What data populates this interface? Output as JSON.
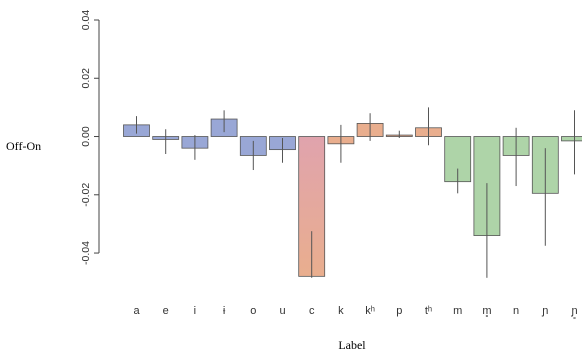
{
  "chart_data": {
    "type": "bar",
    "title": "",
    "xlabel": "Label",
    "ylabel": "Off-On",
    "ylim": [
      -0.052,
      0.04
    ],
    "yticks": [
      0.04,
      0.02,
      0.0,
      -0.02,
      -0.04
    ],
    "ytick_labels": [
      "0.04",
      "0.02",
      "0.00",
      "-0.02",
      "-0.04"
    ],
    "grid": false,
    "categories": [
      "a",
      "e",
      "i",
      "ɨ",
      "o",
      "u",
      "c",
      "k",
      "kʰ",
      "p",
      "tʰ",
      "m",
      "m̥",
      "n",
      "ɲ",
      "ɲ̥"
    ],
    "values": [
      0.004,
      -0.001,
      -0.004,
      0.006,
      -0.0065,
      -0.0045,
      -0.048,
      -0.0025,
      0.0045,
      0.0005,
      0.003,
      -0.0155,
      -0.034,
      -0.0065,
      -0.0195,
      -0.0015
    ],
    "error_low": [
      0.001,
      -0.006,
      -0.008,
      0.0015,
      -0.0115,
      -0.009,
      -0.0485,
      -0.009,
      -0.0015,
      -0.0005,
      -0.003,
      -0.0195,
      -0.0485,
      -0.017,
      -0.0375,
      -0.013
    ],
    "error_high": [
      0.007,
      0.0025,
      0.0005,
      0.009,
      -0.0015,
      -0.0005,
      -0.0325,
      0.004,
      0.008,
      0.002,
      0.01,
      -0.011,
      -0.016,
      0.003,
      -0.004,
      0.009
    ],
    "colors": [
      "#99a7d6",
      "#99a7d6",
      "#99a7d6",
      "#99a7d6",
      "#99a7d6",
      "#99a7d6",
      "#e9ae8e",
      "#e9ae8e",
      "#e9ae8e",
      "#e9ae8e",
      "#e9ae8e",
      "#aed4a8",
      "#aed4a8",
      "#aed4a8",
      "#aed4a8",
      "#aed4a8"
    ],
    "gradient_top_color": "#e0a3ad"
  }
}
